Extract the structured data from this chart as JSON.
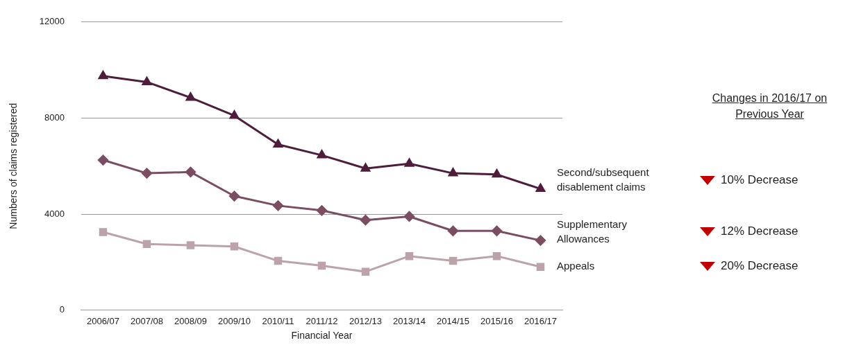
{
  "chart_data": {
    "type": "line",
    "xlabel": "Financial Year",
    "ylabel": "Numbers of claims registered",
    "categories": [
      "2006/07",
      "2007/08",
      "2008/09",
      "2009/10",
      "2010/11",
      "2011/12",
      "2012/13",
      "2013/14",
      "2014/15",
      "2015/16",
      "2016/17"
    ],
    "series": [
      {
        "name": "Second/subsequent disablement claims",
        "color": "#4e1d3b",
        "marker": "triangle",
        "values": [
          9750,
          9500,
          8850,
          8100,
          6900,
          6450,
          5900,
          6100,
          5700,
          5650,
          5050
        ]
      },
      {
        "name": "Supplementary Allowances",
        "color": "#7b4d63",
        "marker": "diamond",
        "values": [
          6250,
          5700,
          5750,
          4750,
          4350,
          4150,
          3750,
          3900,
          3300,
          3300,
          2900
        ]
      },
      {
        "name": "Appeals",
        "color": "#bca3a9",
        "marker": "square",
        "values": [
          3250,
          2750,
          2700,
          2650,
          2050,
          1850,
          1600,
          2250,
          2050,
          2250,
          1800
        ]
      }
    ],
    "ylim": [
      0,
      12000
    ],
    "yticks": [
      0,
      4000,
      8000,
      12000
    ],
    "grid": "y",
    "legend": false,
    "annotations": [
      "Changes in 2016/17 on Previous Year",
      "10% Decrease",
      "12% Decrease",
      "20% Decrease"
    ]
  }
}
